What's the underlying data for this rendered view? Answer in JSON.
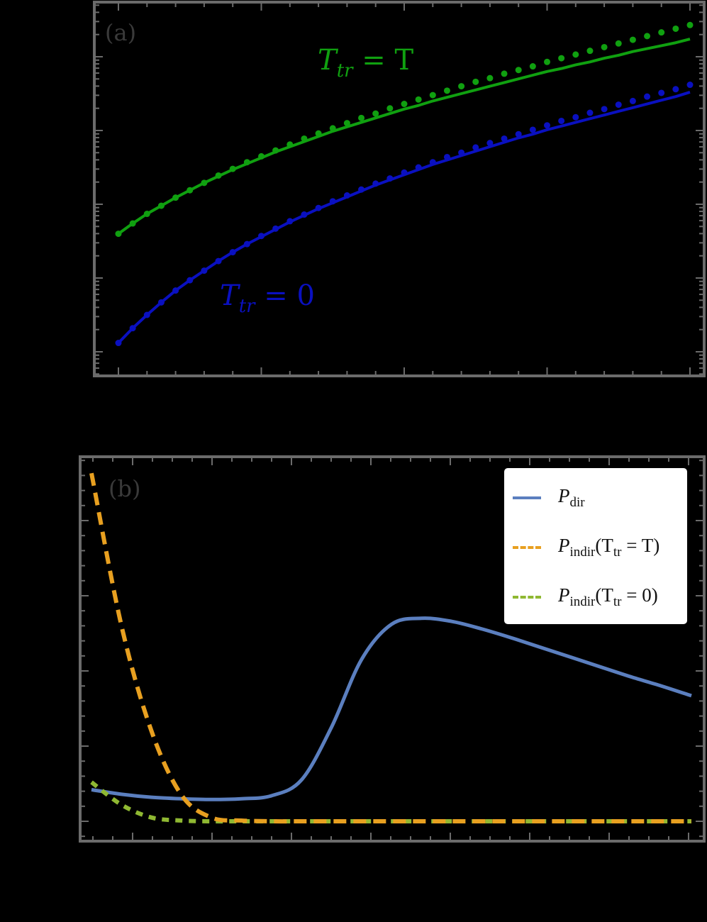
{
  "chart_data": [
    {
      "panel": "(a)",
      "type": "line",
      "title": "",
      "xlabel": "",
      "ylabel": "",
      "yscale": "log",
      "x_tick_labels": [],
      "y_tick_labels": [],
      "grid": false,
      "notes": "Tick labels and axis titles are not visible (rendered black on black). Y values are given in decades above the lowest major log tick; x as point index 0-40 across the plotted range.",
      "x": [
        0,
        1,
        2,
        3,
        4,
        5,
        6,
        7,
        8,
        9,
        10,
        11,
        12,
        13,
        14,
        15,
        16,
        17,
        18,
        19,
        20,
        21,
        22,
        23,
        24,
        25,
        26,
        27,
        28,
        29,
        30,
        31,
        32,
        33,
        34,
        35,
        36,
        37,
        38,
        39,
        40
      ],
      "series": [
        {
          "name": "T_tr = T (line)",
          "style": "solid",
          "color": "#10a010",
          "values": [
            1.6,
            1.74,
            1.87,
            1.98,
            2.09,
            2.19,
            2.29,
            2.38,
            2.47,
            2.55,
            2.63,
            2.71,
            2.78,
            2.85,
            2.92,
            2.99,
            3.05,
            3.11,
            3.17,
            3.23,
            3.29,
            3.34,
            3.4,
            3.45,
            3.5,
            3.55,
            3.6,
            3.65,
            3.7,
            3.75,
            3.8,
            3.84,
            3.89,
            3.93,
            3.98,
            4.02,
            4.07,
            4.11,
            4.15,
            4.19,
            4.24
          ]
        },
        {
          "name": "T_tr = T (points)",
          "style": "dots",
          "color": "#10a010",
          "values": [
            1.6,
            1.74,
            1.87,
            1.98,
            2.09,
            2.19,
            2.29,
            2.39,
            2.48,
            2.57,
            2.65,
            2.73,
            2.81,
            2.89,
            2.96,
            3.03,
            3.1,
            3.17,
            3.23,
            3.3,
            3.36,
            3.42,
            3.48,
            3.54,
            3.6,
            3.66,
            3.71,
            3.77,
            3.82,
            3.87,
            3.93,
            3.98,
            4.03,
            4.08,
            4.13,
            4.18,
            4.23,
            4.28,
            4.33,
            4.38,
            4.43
          ]
        },
        {
          "name": "T_tr = 0 (line)",
          "style": "solid",
          "color": "#0a10c0",
          "values": [
            0.12,
            0.32,
            0.5,
            0.67,
            0.83,
            0.97,
            1.1,
            1.23,
            1.35,
            1.46,
            1.56,
            1.66,
            1.76,
            1.85,
            1.94,
            2.02,
            2.1,
            2.18,
            2.26,
            2.33,
            2.4,
            2.47,
            2.54,
            2.6,
            2.66,
            2.72,
            2.78,
            2.84,
            2.9,
            2.95,
            3.01,
            3.06,
            3.11,
            3.16,
            3.21,
            3.26,
            3.31,
            3.36,
            3.41,
            3.46,
            3.52
          ]
        },
        {
          "name": "T_tr = 0 (points)",
          "style": "dots",
          "color": "#0a10c0",
          "values": [
            0.12,
            0.32,
            0.5,
            0.67,
            0.83,
            0.97,
            1.1,
            1.23,
            1.35,
            1.46,
            1.57,
            1.67,
            1.77,
            1.86,
            1.95,
            2.04,
            2.12,
            2.2,
            2.28,
            2.35,
            2.43,
            2.5,
            2.57,
            2.64,
            2.7,
            2.77,
            2.83,
            2.89,
            2.95,
            3.01,
            3.07,
            3.13,
            3.18,
            3.24,
            3.29,
            3.35,
            3.4,
            3.46,
            3.51,
            3.56,
            3.62
          ]
        }
      ],
      "annotations": [
        {
          "text": "T_tr = T",
          "color": "#10a010"
        },
        {
          "text": "T_tr = 0",
          "color": "#0a10c0"
        }
      ],
      "legend_position": "none"
    },
    {
      "panel": "(b)",
      "type": "line",
      "title": "",
      "xlabel": "",
      "ylabel": "",
      "x_tick_labels": [],
      "y_tick_labels": [],
      "grid": false,
      "notes": "Tick labels and axis titles are not visible. Y values given in units of major y-ticks above baseline; x normalized 0-1 across the plotted range.",
      "x": [
        0,
        0.05,
        0.1,
        0.15,
        0.2,
        0.25,
        0.3,
        0.35,
        0.4,
        0.45,
        0.5,
        0.55,
        0.6,
        0.65,
        0.7,
        0.75,
        0.8,
        0.85,
        0.9,
        0.95,
        1.0
      ],
      "series": [
        {
          "name": "P_dir",
          "style": "solid",
          "color": "#5b7fbf",
          "values": [
            0.42,
            0.36,
            0.32,
            0.3,
            0.29,
            0.3,
            0.34,
            0.55,
            1.25,
            2.15,
            2.62,
            2.7,
            2.66,
            2.56,
            2.44,
            2.31,
            2.18,
            2.05,
            1.92,
            1.8,
            1.67
          ]
        },
        {
          "name": "P_indir(T_tr = T)",
          "style": "dashed",
          "color": "#e8a020",
          "values": [
            4.63,
            2.6,
            1.2,
            0.35,
            0.05,
            0.01,
            0,
            0,
            0,
            0,
            0,
            0,
            0,
            0,
            0,
            0,
            0,
            0,
            0,
            0,
            0
          ]
        },
        {
          "name": "P_indir(T_tr = 0)",
          "style": "dotted",
          "color": "#8fb832",
          "values": [
            0.52,
            0.22,
            0.05,
            0.01,
            0,
            0,
            0,
            0,
            0,
            0,
            0,
            0,
            0,
            0,
            0,
            0,
            0,
            0,
            0,
            0,
            0
          ]
        }
      ],
      "legend_position": "upper right"
    }
  ],
  "panels": {
    "a": {
      "label": "(a)",
      "ann_top": "T",
      "ann_top_sub": "tr",
      "ann_top_rhs": " = T",
      "ann_bot": "T",
      "ann_bot_sub": "tr",
      "ann_bot_rhs": " = 0"
    },
    "b": {
      "label": "(b)"
    }
  },
  "legend": {
    "items": [
      {
        "main": "P",
        "sub": "dir",
        "rest_pre": "",
        "rest_sub": "",
        "rest_post": ""
      },
      {
        "main": "P",
        "sub": "indir",
        "rest_pre": "(T",
        "rest_sub": "tr",
        "rest_post": " = T)"
      },
      {
        "main": "P",
        "sub": "indir",
        "rest_pre": "(T",
        "rest_sub": "tr",
        "rest_post": " = 0)"
      }
    ]
  },
  "colors": {
    "background": "#000000",
    "frame": "#6b6b6b",
    "green": "#10a010",
    "blue_dark": "#0a10c0",
    "p_dir": "#5b7fbf",
    "p_indir_T": "#e8a020",
    "p_indir_0": "#8fb832"
  }
}
